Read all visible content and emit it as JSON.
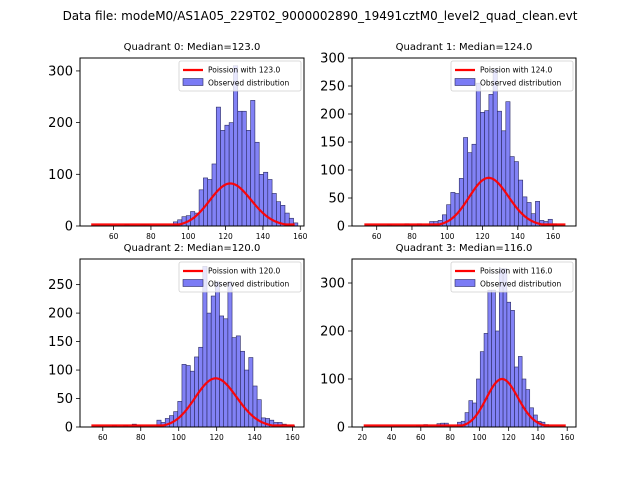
{
  "figure_title": "Data file: modeM0/AS1A05_229T02_9000002890_19491cztM0_level2_quad_clean.evt",
  "colors": {
    "bar_fill": "#7b7bf5",
    "bar_edge": "#2a2a60",
    "curve": "#ff0000"
  },
  "chart_data": [
    {
      "type": "bar",
      "title": "Quadrant 0: Median=123.0",
      "xlim": [
        42,
        162
      ],
      "ylim": [
        0,
        325
      ],
      "xticks": [
        60,
        80,
        100,
        120,
        140,
        160
      ],
      "yticks": [
        0,
        100,
        200,
        300
      ],
      "legend": {
        "position": "top-right",
        "entries": [
          "Poission with 123.0",
          "Observed distribution"
        ]
      },
      "bin_width": 2.3,
      "bins_x": [
        66,
        74.5,
        76.8,
        92,
        94.3,
        96.6,
        98.9,
        101.2,
        103.5,
        105.8,
        108.1,
        110.4,
        112.7,
        115,
        117.3,
        119.6,
        121.9,
        124.2,
        126.5,
        128.8,
        131.1,
        133.4,
        135.7,
        138,
        140.3,
        142.6,
        144.9,
        147.2,
        149.5,
        151.8,
        154.1,
        156.4
      ],
      "counts": [
        3,
        3,
        3,
        8,
        12,
        18,
        20,
        28,
        25,
        70,
        93,
        90,
        120,
        230,
        185,
        195,
        200,
        310,
        222,
        222,
        185,
        243,
        162,
        100,
        104,
        90,
        63,
        47,
        40,
        25,
        15,
        6
      ],
      "poisson_mean": 123.0,
      "poisson_scale": 3050
    },
    {
      "type": "bar",
      "title": "Quadrant 1: Median=124.0",
      "xlim": [
        46,
        173
      ],
      "ylim": [
        0,
        300
      ],
      "xticks": [
        60,
        80,
        100,
        120,
        140,
        160
      ],
      "yticks": [
        0,
        50,
        100,
        150,
        200,
        250,
        300
      ],
      "legend": {
        "position": "top-right",
        "entries": [
          "Poission with 124.0",
          "Observed distribution"
        ]
      },
      "bin_width": 2.4,
      "bins_x": [
        66,
        76,
        83,
        90,
        92.4,
        94.8,
        97.2,
        99.6,
        102,
        104.4,
        106.8,
        109.2,
        111.6,
        114,
        116.4,
        118.8,
        121.2,
        123.6,
        126,
        128.4,
        130.8,
        133.2,
        135.6,
        138,
        140.4,
        142.8,
        145.2,
        147.6,
        150,
        152.4,
        154.8,
        157.2,
        159.6
      ],
      "counts": [
        2,
        4,
        4,
        8,
        8,
        10,
        20,
        38,
        60,
        58,
        85,
        158,
        131,
        146,
        255,
        203,
        206,
        235,
        280,
        205,
        170,
        222,
        124,
        115,
        82,
        52,
        42,
        22,
        44,
        10,
        8,
        12,
        4
      ],
      "poisson_mean": 124.0,
      "poisson_scale": 3200
    },
    {
      "type": "bar",
      "title": "Quadrant 2: Median=120.0",
      "xlim": [
        48,
        166
      ],
      "ylim": [
        0,
        295
      ],
      "xticks": [
        60,
        80,
        100,
        120,
        140,
        160
      ],
      "yticks": [
        0,
        50,
        100,
        150,
        200,
        250
      ],
      "legend": {
        "position": "top-right",
        "entries": [
          "Poission with 120.0",
          "Observed distribution"
        ]
      },
      "bin_width": 2.2,
      "bins_x": [
        65,
        71,
        75.5,
        77.7,
        88.5,
        90.7,
        92.9,
        95.1,
        97.3,
        99.5,
        101.7,
        103.9,
        106.1,
        108.3,
        110.5,
        112.7,
        114.9,
        117.1,
        119.3,
        121.5,
        123.7,
        125.9,
        128.1,
        130.3,
        132.5,
        134.7,
        136.9,
        139.1,
        141.3,
        143.5,
        145.7,
        147.9,
        150.1,
        152.3,
        154.5,
        156.7,
        158.9
      ],
      "counts": [
        3,
        3,
        5,
        3,
        12,
        8,
        15,
        20,
        27,
        45,
        110,
        108,
        98,
        123,
        140,
        282,
        200,
        230,
        255,
        195,
        190,
        255,
        157,
        160,
        133,
        100,
        122,
        72,
        48,
        16,
        15,
        12,
        8,
        8,
        5,
        3,
        2
      ],
      "poisson_mean": 120.0,
      "poisson_scale": 3130
    },
    {
      "type": "bar",
      "title": "Quadrant 3: Median=116.0",
      "xlim": [
        13,
        166
      ],
      "ylim": [
        0,
        350
      ],
      "xticks": [
        20,
        40,
        60,
        80,
        100,
        120,
        140,
        160
      ],
      "yticks": [
        0,
        100,
        200,
        300
      ],
      "legend": {
        "position": "top-right",
        "entries": [
          "Poission with 116.0",
          "Observed distribution"
        ]
      },
      "bin_width": 2.6,
      "bins_x": [
        57,
        62,
        71,
        73.6,
        76.2,
        85,
        87.6,
        90.2,
        92.8,
        95.4,
        98,
        100.6,
        103.2,
        105.8,
        108.4,
        111,
        113.6,
        116.2,
        118.8,
        121.4,
        124,
        126.6,
        129.2,
        131.8,
        134.4,
        137,
        139.6,
        142.2,
        144.8
      ],
      "counts": [
        3,
        5,
        7,
        8,
        8,
        10,
        12,
        30,
        55,
        50,
        100,
        157,
        195,
        285,
        285,
        200,
        330,
        330,
        260,
        243,
        125,
        147,
        100,
        78,
        40,
        25,
        12,
        10,
        5
      ],
      "poisson_mean": 116.0,
      "poisson_scale": 3600
    }
  ]
}
